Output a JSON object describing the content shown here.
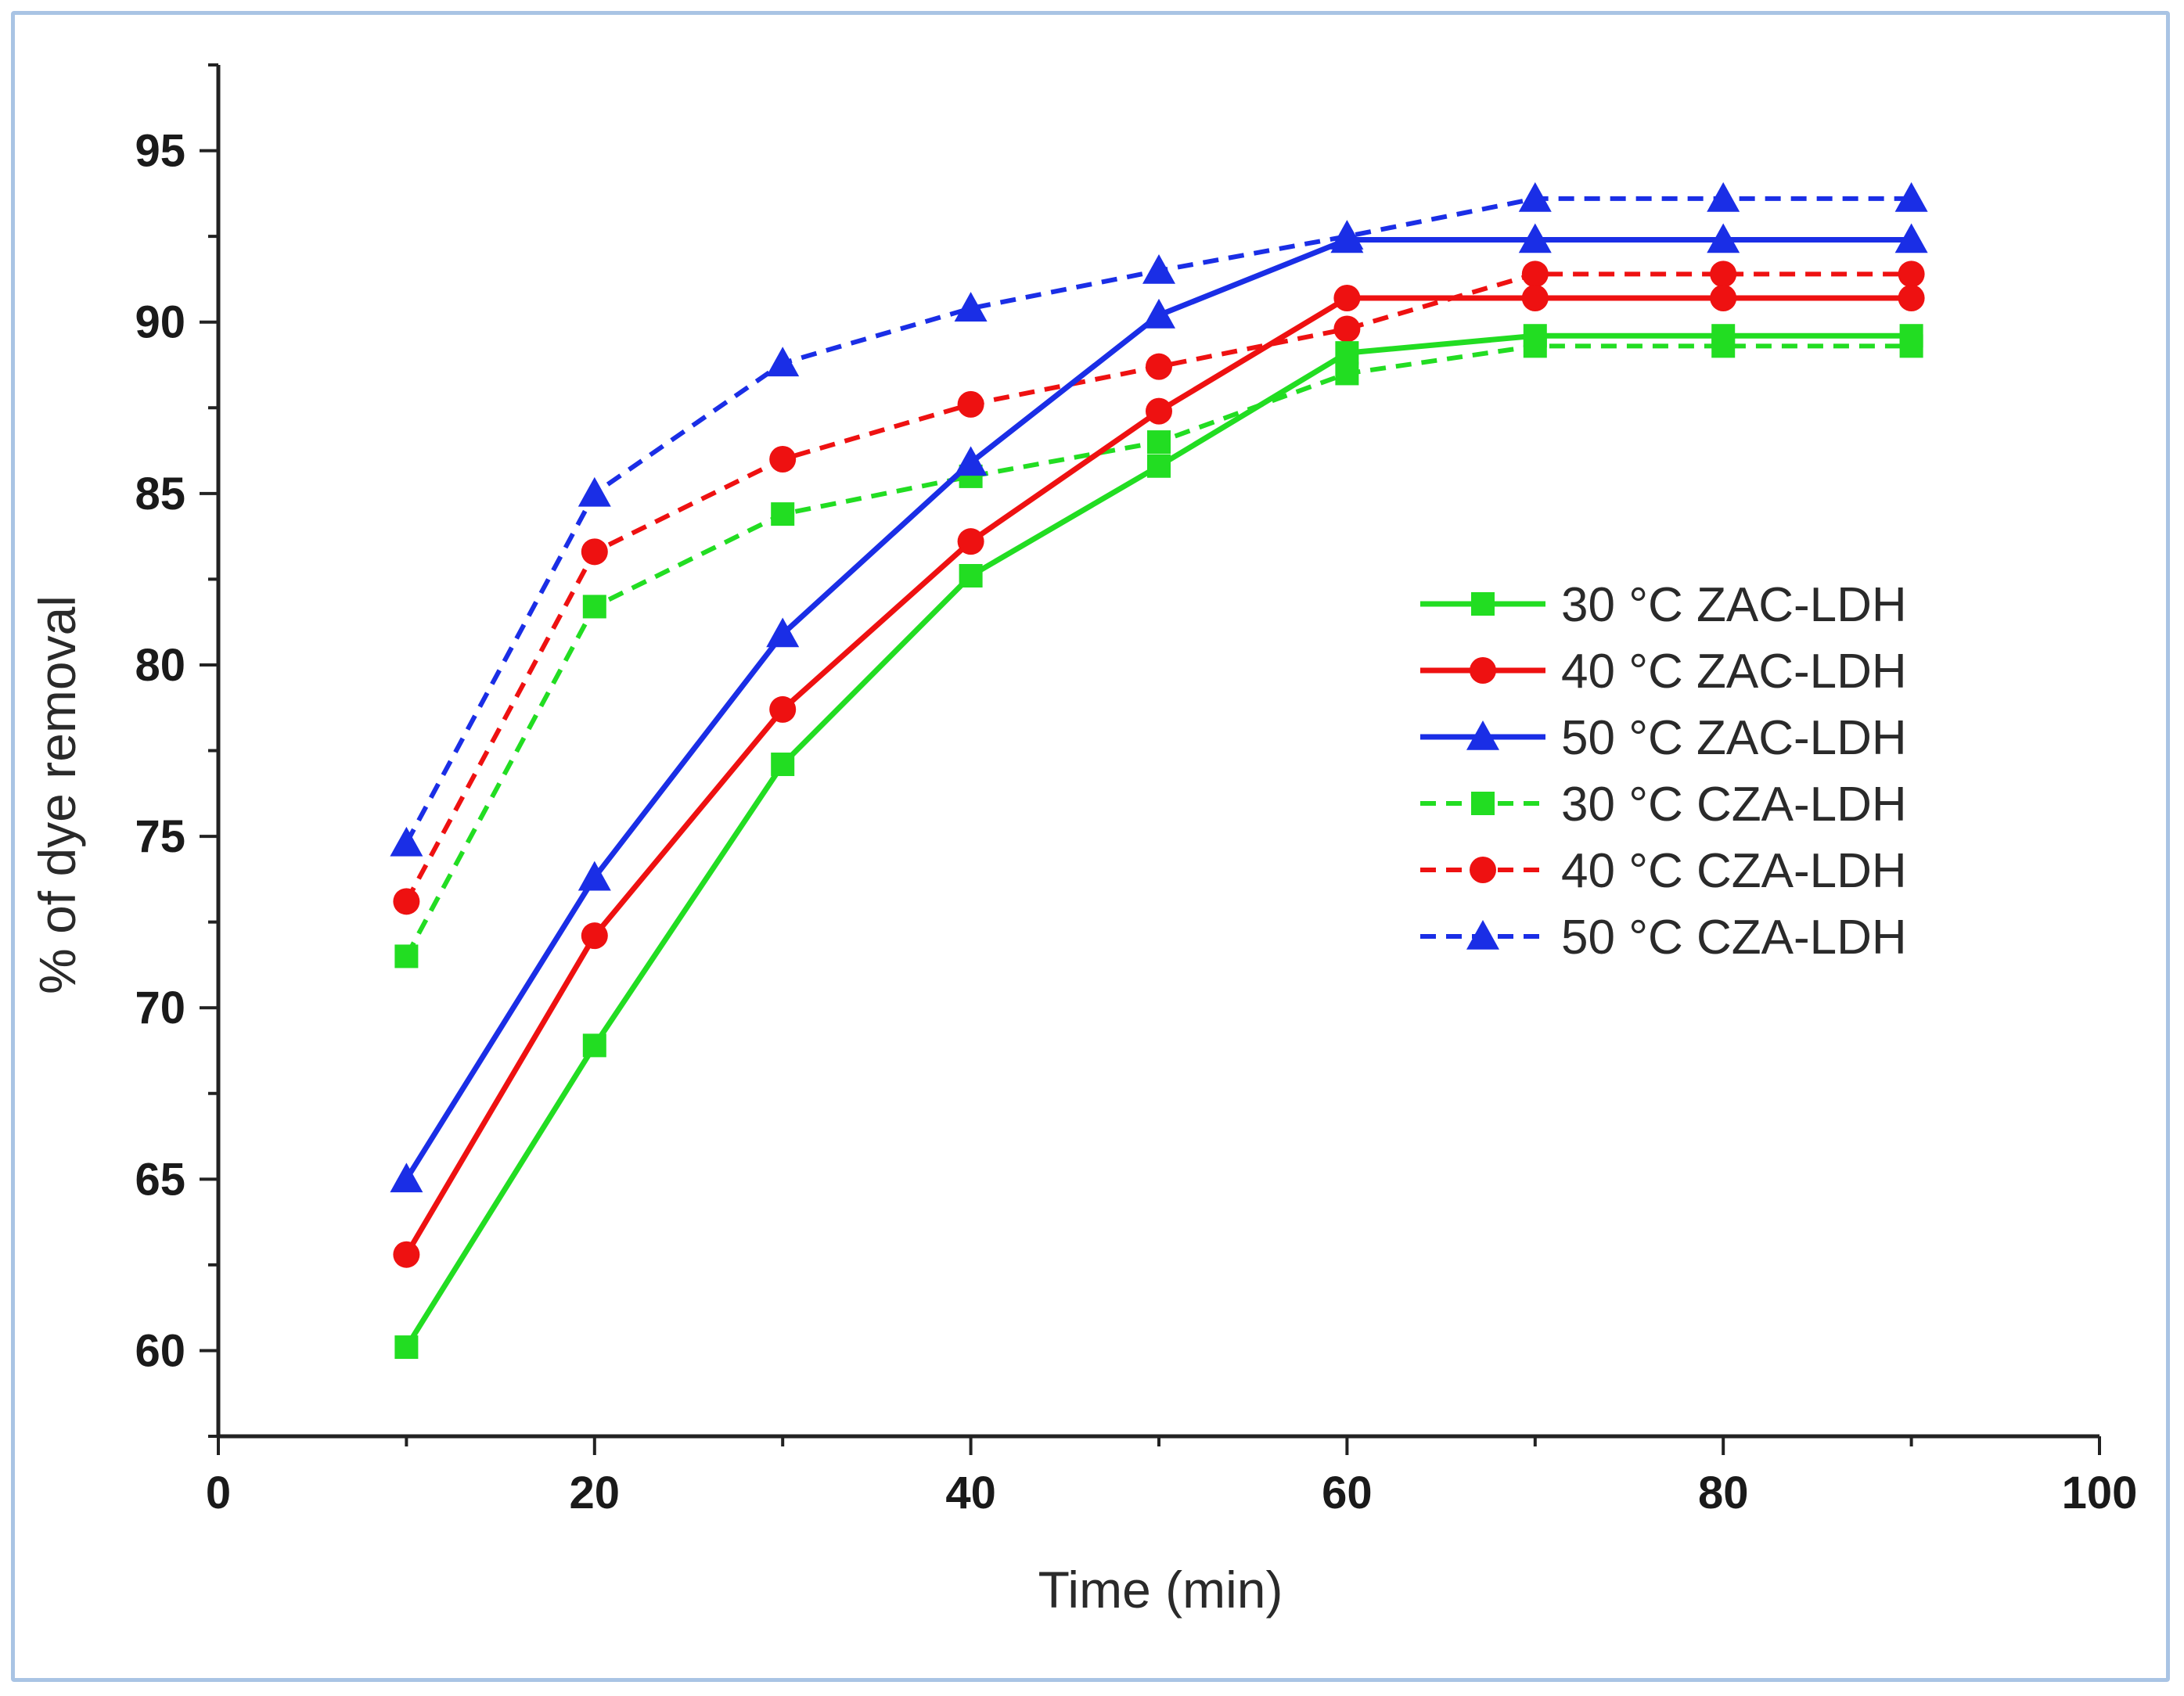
{
  "chart_data": {
    "type": "line",
    "title": "",
    "xlabel": "Time (min)",
    "ylabel": "% of dye removal",
    "xlim": [
      0,
      100
    ],
    "ylim": [
      57.5,
      97.5
    ],
    "x_ticks": [
      0,
      20,
      40,
      60,
      80,
      100
    ],
    "y_ticks": [
      60,
      65,
      70,
      75,
      80,
      85,
      90,
      95
    ],
    "grid": false,
    "legend_position": "right",
    "x": [
      10,
      20,
      30,
      40,
      50,
      60,
      70,
      80,
      90
    ],
    "series": [
      {
        "name": "30 °C ZAC-LDH",
        "color": "#22dd22",
        "dashed": false,
        "marker": "square",
        "values": [
          60.1,
          68.9,
          77.1,
          82.6,
          85.8,
          89.1,
          89.6,
          89.6,
          89.6
        ]
      },
      {
        "name": "40 °C ZAC-LDH",
        "color": "#ee1111",
        "dashed": false,
        "marker": "circle",
        "values": [
          62.8,
          72.1,
          78.7,
          83.6,
          87.4,
          90.7,
          90.7,
          90.7,
          90.7
        ]
      },
      {
        "name": "50 °C ZAC-LDH",
        "color": "#1a2ee6",
        "dashed": false,
        "marker": "triangle",
        "values": [
          65.0,
          73.8,
          80.9,
          85.9,
          90.2,
          92.4,
          92.4,
          92.4,
          92.4
        ]
      },
      {
        "name": "30 °C CZA-LDH",
        "color": "#22dd22",
        "dashed": true,
        "marker": "square",
        "values": [
          71.5,
          81.7,
          84.4,
          85.5,
          86.5,
          88.5,
          89.3,
          89.3,
          89.3
        ]
      },
      {
        "name": "40 °C CZA-LDH",
        "color": "#ee1111",
        "dashed": true,
        "marker": "circle",
        "values": [
          73.1,
          83.3,
          86.0,
          87.6,
          88.7,
          89.8,
          91.4,
          91.4,
          91.4
        ]
      },
      {
        "name": "50 °C CZA-LDH",
        "color": "#1a2ee6",
        "dashed": true,
        "marker": "triangle",
        "values": [
          74.8,
          85.0,
          88.8,
          90.4,
          91.5,
          92.5,
          93.6,
          93.6,
          93.6
        ]
      }
    ]
  }
}
